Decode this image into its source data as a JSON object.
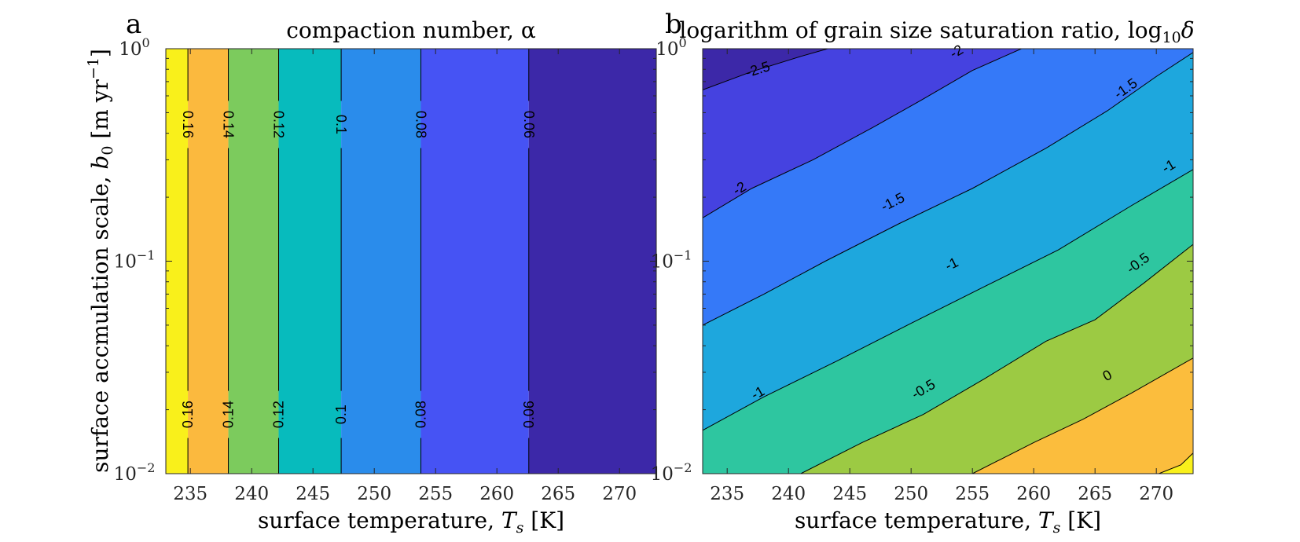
{
  "figure": {
    "panels": [
      {
        "letter": "a",
        "title": "compaction number, α",
        "xlabel_text": "surface temperature, ",
        "xlabel_sym": "T",
        "xlabel_sub": "s",
        "xlabel_unit": " [K]",
        "ylabel_text": "surface accmulation scale, ",
        "ylabel_sym": "b",
        "ylabel_sub": "0",
        "ylabel_unit": " [m yr",
        "ylabel_exp": "−1",
        "ylabel_close": "]"
      },
      {
        "letter": "b",
        "title": "logarithm of grain size saturation ratio, log",
        "title_sub": "10",
        "title_sym": "δ",
        "xlabel_text": "surface temperature, ",
        "xlabel_sym": "T",
        "xlabel_sub": "s",
        "xlabel_unit": " [K]"
      }
    ]
  },
  "chart_data": [
    {
      "type": "contour",
      "title": "compaction number, α",
      "xlabel": "surface temperature, T_s [K]",
      "ylabel": "surface accmulation scale, b_0 [m yr^-1]",
      "xlim": [
        233,
        273
      ],
      "ylim": [
        0.01,
        1
      ],
      "yscale": "log",
      "xticks": [
        235,
        240,
        245,
        250,
        255,
        260,
        265,
        270
      ],
      "yticks": [
        {
          "base": "10",
          "exp": "−2",
          "value": 0.01
        },
        {
          "base": "10",
          "exp": "−1",
          "value": 0.1
        },
        {
          "base": "10",
          "exp": "0",
          "value": 1
        }
      ],
      "fill_colors": [
        "#f9f01b",
        "#fbb93e",
        "#7ccb5d",
        "#07bbbd",
        "#2a8ceb",
        "#4653f4",
        "#3c28a8"
      ],
      "contour_levels": [
        0.16,
        0.14,
        0.12,
        0.1,
        0.08,
        0.06
      ],
      "contour_label_text": [
        "0.16",
        "0.14",
        "0.12",
        "0.1",
        "0.08",
        "0.06"
      ],
      "contour_x_positions": [
        234.8,
        238.1,
        242.2,
        247.3,
        253.8,
        262.6
      ]
    },
    {
      "type": "contour",
      "title": "logarithm of grain size saturation ratio, log10 δ",
      "xlabel": "surface temperature, T_s [K]",
      "xlim": [
        233,
        273
      ],
      "ylim": [
        0.01,
        1
      ],
      "yscale": "log",
      "xticks": [
        235,
        240,
        245,
        250,
        255,
        260,
        265,
        270
      ],
      "yticks": [
        {
          "base": "10",
          "exp": "−2",
          "value": 0.01
        },
        {
          "base": "10",
          "exp": "−1",
          "value": 0.1
        },
        {
          "base": "10",
          "exp": "0",
          "value": 1
        }
      ],
      "fill_colors": [
        "#3c28a8",
        "#4542e0",
        "#3579f8",
        "#1ea7dd",
        "#2ec6a0",
        "#9cca43",
        "#fbbd3d",
        "#f9f01b"
      ],
      "contour_levels": [
        -2.5,
        -2,
        -1.5,
        -1,
        -0.5,
        0,
        0.5
      ],
      "contour_label_text": [
        "-2.5",
        "-2",
        "-1.5",
        "-1",
        "-0.5",
        "0",
        ""
      ],
      "contour_lines": [
        {
          "level": -2.5,
          "points": [
            [
              233,
              0.64
            ],
            [
              237,
              0.78
            ],
            [
              241,
              0.92
            ],
            [
              243.2,
              1.0
            ]
          ]
        },
        {
          "level": -2,
          "points": [
            [
              233,
              0.16
            ],
            [
              237,
              0.22
            ],
            [
              242,
              0.3
            ],
            [
              247,
              0.43
            ],
            [
              251,
              0.58
            ],
            [
              255,
              0.79
            ],
            [
              259,
              1.0
            ]
          ]
        },
        {
          "level": -1.5,
          "points": [
            [
              233,
              0.05
            ],
            [
              238,
              0.07
            ],
            [
              243,
              0.1
            ],
            [
              249,
              0.15
            ],
            [
              255,
              0.22
            ],
            [
              261,
              0.34
            ],
            [
              266,
              0.51
            ],
            [
              270,
              0.74
            ],
            [
              273,
              0.96
            ]
          ]
        },
        {
          "level": -1,
          "points": [
            [
              233,
              0.016
            ],
            [
              238,
              0.023
            ],
            [
              244,
              0.034
            ],
            [
              250,
              0.051
            ],
            [
              256,
              0.076
            ],
            [
              262,
              0.113
            ],
            [
              268,
              0.183
            ],
            [
              273,
              0.27
            ]
          ]
        },
        {
          "level": -0.5,
          "points": [
            [
              241,
              0.01
            ],
            [
              246,
              0.014
            ],
            [
              251,
              0.019
            ],
            [
              256,
              0.028
            ],
            [
              261,
              0.042
            ],
            [
              265,
              0.053
            ],
            [
              269,
              0.079
            ],
            [
              273,
              0.12
            ]
          ]
        },
        {
          "level": 0,
          "points": [
            [
              255,
              0.01
            ],
            [
              260,
              0.014
            ],
            [
              264,
              0.018
            ],
            [
              268,
              0.024
            ],
            [
              273,
              0.035
            ]
          ]
        },
        {
          "level": 0.5,
          "points": [
            [
              270.2,
              0.01
            ],
            [
              272,
              0.011
            ],
            [
              273,
              0.0125
            ]
          ]
        }
      ],
      "contour_label_positions": [
        {
          "text": "-2.5",
          "at": [
            237.5,
            0.8
          ]
        },
        {
          "text": "-2",
          "at": [
            253.7,
            0.97
          ]
        },
        {
          "text": "-2",
          "at": [
            236,
            0.22
          ]
        },
        {
          "text": "-1.5",
          "at": [
            267.5,
            0.65
          ]
        },
        {
          "text": "-1.5",
          "at": [
            248.5,
            0.19
          ]
        },
        {
          "text": "-1",
          "at": [
            271,
            0.28
          ]
        },
        {
          "text": "-1",
          "at": [
            253.3,
            0.097
          ]
        },
        {
          "text": "-1",
          "at": [
            237.5,
            0.024
          ]
        },
        {
          "text": "-0.5",
          "at": [
            268.5,
            0.098
          ]
        },
        {
          "text": "-0.5",
          "at": [
            251,
            0.025
          ]
        },
        {
          "text": "0",
          "at": [
            266,
            0.029
          ]
        }
      ]
    }
  ]
}
